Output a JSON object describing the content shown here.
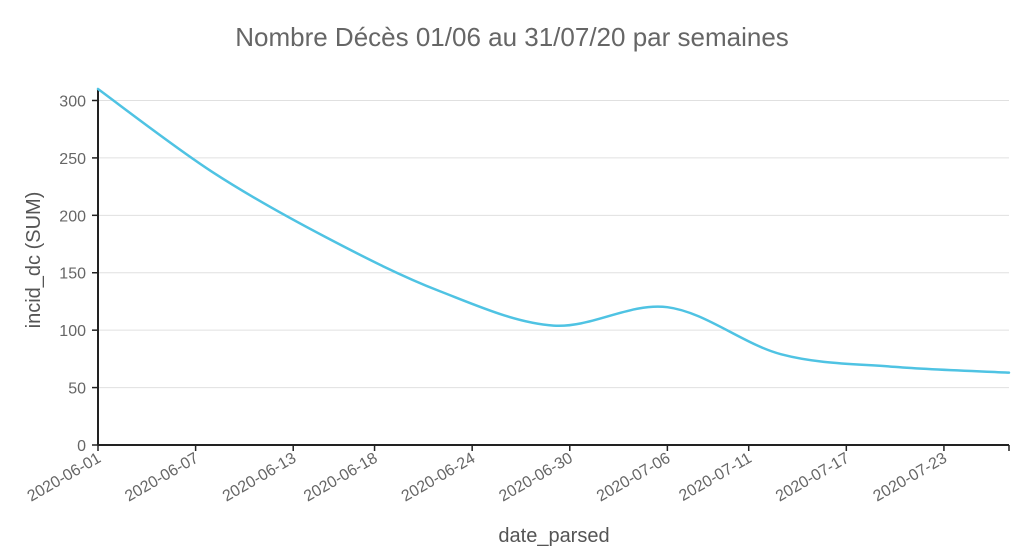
{
  "chart_data": {
    "type": "line",
    "title": "Nombre Décès 01/06 au 31/07/20 par semaines",
    "xlabel": "date_parsed",
    "ylabel": "incid_dc (SUM)",
    "ylim": [
      0,
      310
    ],
    "yticks": [
      0,
      50,
      100,
      150,
      200,
      250,
      300
    ],
    "xlim": [
      "2020-06-01",
      "2020-07-27"
    ],
    "xtick_labels": [
      "2020-06-01",
      "2020-06-07",
      "2020-06-13",
      "2020-06-18",
      "2020-06-24",
      "2020-06-30",
      "2020-07-06",
      "2020-07-11",
      "2020-07-17",
      "2020-07-23"
    ],
    "grid": true,
    "series_color": "#4fc3e3",
    "series": [
      {
        "x": [
          "2020-06-01",
          "2020-06-08",
          "2020-06-15",
          "2020-06-22",
          "2020-06-29",
          "2020-07-06",
          "2020-07-13",
          "2020-07-20",
          "2020-07-27"
        ],
        "values": [
          310,
          238,
          181,
          134,
          104,
          120,
          79,
          68,
          63
        ]
      }
    ]
  }
}
